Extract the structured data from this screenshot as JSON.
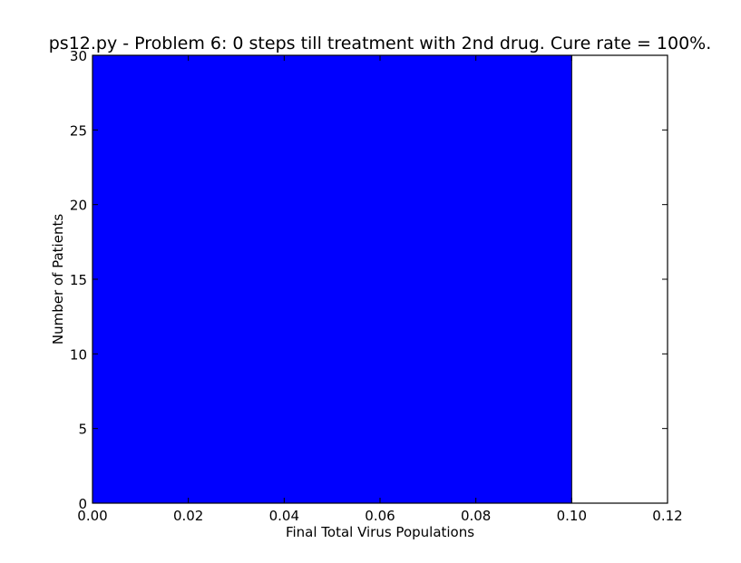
{
  "chart_data": {
    "type": "bar",
    "title": "ps12.py - Problem 6: 0 steps till treatment with 2nd drug. Cure rate = 100%.",
    "xlabel": "Final Total Virus Populations",
    "ylabel": "Number of Patients",
    "xlim": [
      0.0,
      0.12
    ],
    "ylim": [
      0,
      30
    ],
    "xticks": [
      "0.00",
      "0.02",
      "0.04",
      "0.06",
      "0.08",
      "0.10",
      "0.12"
    ],
    "yticks": [
      "0",
      "5",
      "10",
      "15",
      "20",
      "25",
      "30"
    ],
    "bars": [
      {
        "x_start": 0.0,
        "x_end": 0.1,
        "value": 30
      }
    ],
    "bar_color": "#0000ff",
    "grid": false
  }
}
